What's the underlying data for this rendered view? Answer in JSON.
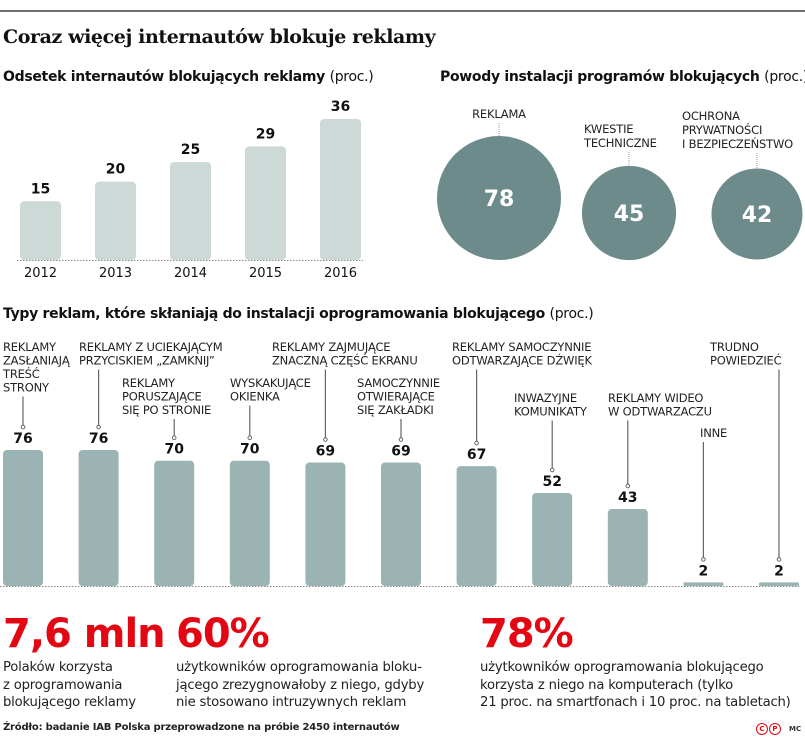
{
  "title": "Coraz więcej internautów blokuje reklamy",
  "colors": {
    "bar_light": "#cdd9d7",
    "bar_mid": "#9bb3b3",
    "bubble": "#6d8b8a",
    "accent_red": "#e30613",
    "topline": "#6e6e6e"
  },
  "chart_data": [
    {
      "type": "bar",
      "title": "Odsetek internautów blokujących reklamy",
      "unit": "(proc.)",
      "categories": [
        "2012",
        "2013",
        "2014",
        "2015",
        "2016"
      ],
      "values": [
        15,
        20,
        25,
        29,
        36
      ],
      "xlabel": "",
      "ylabel": "",
      "ylim": [
        0,
        36
      ],
      "grid": false,
      "legend": "none"
    },
    {
      "type": "bubble",
      "title": "Powody instalacji programów blokujących",
      "unit": "(proc.)",
      "categories": [
        "REKLAMA",
        "KWESTIE TECHNICZNE",
        "OCHRONA PRYWATNOŚCI I BEZPIECZEŃSTWO"
      ],
      "label_lines": [
        [
          "REKLAMA"
        ],
        [
          "KWESTIE",
          "TECHNICZNE"
        ],
        [
          "OCHRONA",
          "PRYWATNOŚCI",
          "I BEZPIECZEŃSTWO"
        ]
      ],
      "values": [
        78,
        45,
        42
      ]
    },
    {
      "type": "bar",
      "title": "Typy reklam, które skłaniają do instalacji oprogramowania blokującego",
      "unit": "(proc.)",
      "categories": [
        "REKLAMY ZASŁANIAJĄ TREŚĆ STRONY",
        "REKLAMY Z UCIEKAJĄCYM PRZYCISKIEM „ZAMKNIJ”",
        "REKLAMY PORUSZAJĄCE SIĘ PO STRONIE",
        "WYSKAKUJĄCE OKIENKA",
        "REKLAMY ZAJMUJĄCE ZNACZNĄ CZĘŚĆ EKRANU",
        "SAMOCZYNNIE OTWIERAJĄCE SIĘ ZAKŁADKI",
        "REKLAMY SAMOCZYNNIE ODTWARZAJĄCE DŹWIĘK",
        "INWAZYJNE KOMUNIKATY",
        "REKLAMY WIDEO W ODTWARZACZU",
        "INNE",
        "TRUDNO POWIEDZIEĆ"
      ],
      "label_lines": [
        [
          "REKLAMY",
          "ZASŁANIAJĄ",
          "TREŚĆ",
          "STRONY"
        ],
        [
          "REKLAMY Z UCIEKAJĄCYM",
          "PRZYCISKIEM „ZAMKNIJ”"
        ],
        [
          "REKLAMY",
          "PORUSZAJĄCE",
          "SIĘ PO STRONIE"
        ],
        [
          "WYSKAKUJĄCE",
          "OKIENKA"
        ],
        [
          "REKLAMY ZAJMUJĄCE",
          "ZNACZNĄ CZĘŚĆ EKRANU"
        ],
        [
          "SAMOCZYNNIE",
          "OTWIERAJĄCE",
          "SIĘ ZAKŁADKI"
        ],
        [
          "REKLAMY SAMOCZYNNIE",
          "ODTWARZAJĄCE DŹWIĘK"
        ],
        [
          "INWAZYJNE",
          "KOMUNIKATY"
        ],
        [
          "REKLAMY WIDEO",
          "W ODTWARZACZU"
        ],
        [
          "INNE"
        ],
        [
          "TRUDNO",
          "POWIEDZIEĆ"
        ]
      ],
      "values": [
        76,
        76,
        70,
        70,
        69,
        69,
        67,
        52,
        43,
        2,
        2
      ],
      "xlabel": "",
      "ylabel": "",
      "ylim": [
        0,
        76
      ],
      "grid": false,
      "legend": "none"
    }
  ],
  "stats": [
    {
      "value": "7,6 mln",
      "lines": [
        "Polaków korzysta",
        "z oprogramowania",
        "blokującego reklamy"
      ]
    },
    {
      "value": "60%",
      "lines": [
        "użytkowników oprogramowania bloku-",
        "jącego zrezygnowałoby z niego, gdyby",
        "nie stosowano intruzywnych reklam"
      ]
    },
    {
      "value": "78%",
      "lines": [
        "użytkowników oprogramowania blokującego",
        "korzysta z niego na komputerach (tylko",
        "21 proc. na smartfonach i 10 proc. na tabletach)"
      ]
    }
  ],
  "source": "Źródło: badanie IAB Polska przeprowadzone na próbie 2450 internautów",
  "credit": {
    "c": "C",
    "p": "P",
    "author": "MC"
  }
}
